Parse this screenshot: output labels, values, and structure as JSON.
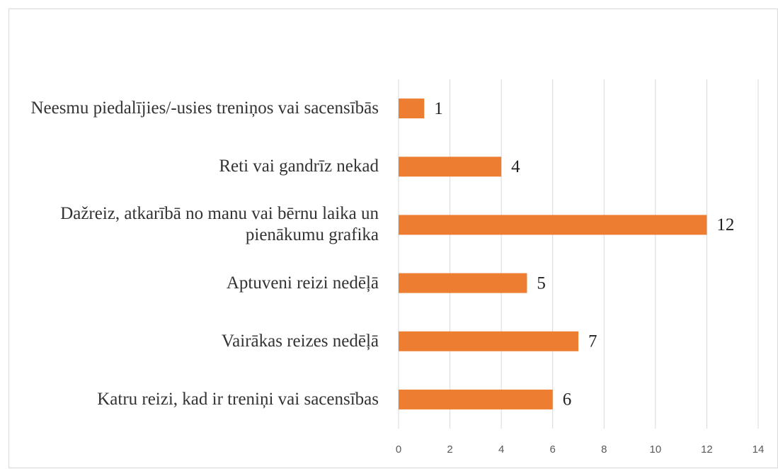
{
  "chart_data": {
    "type": "bar",
    "orientation": "horizontal",
    "categories": [
      "Neesmu piedalījies/-usies treniņos vai sacensībās",
      "Reti vai gandrīz nekad",
      "Dažreiz, atkarībā no manu vai bērnu laika un pienākumu grafika",
      "Aptuveni reizi nedēļā",
      "Vairākas reizes nedēļā",
      "Katru reizi, kad ir treniņi vai sacensības"
    ],
    "values": [
      1,
      4,
      12,
      5,
      7,
      6
    ],
    "color": "#ed7d31",
    "xlim": [
      0,
      14
    ],
    "xticks": [
      0,
      2,
      4,
      6,
      8,
      10,
      12,
      14
    ],
    "grid": true
  }
}
